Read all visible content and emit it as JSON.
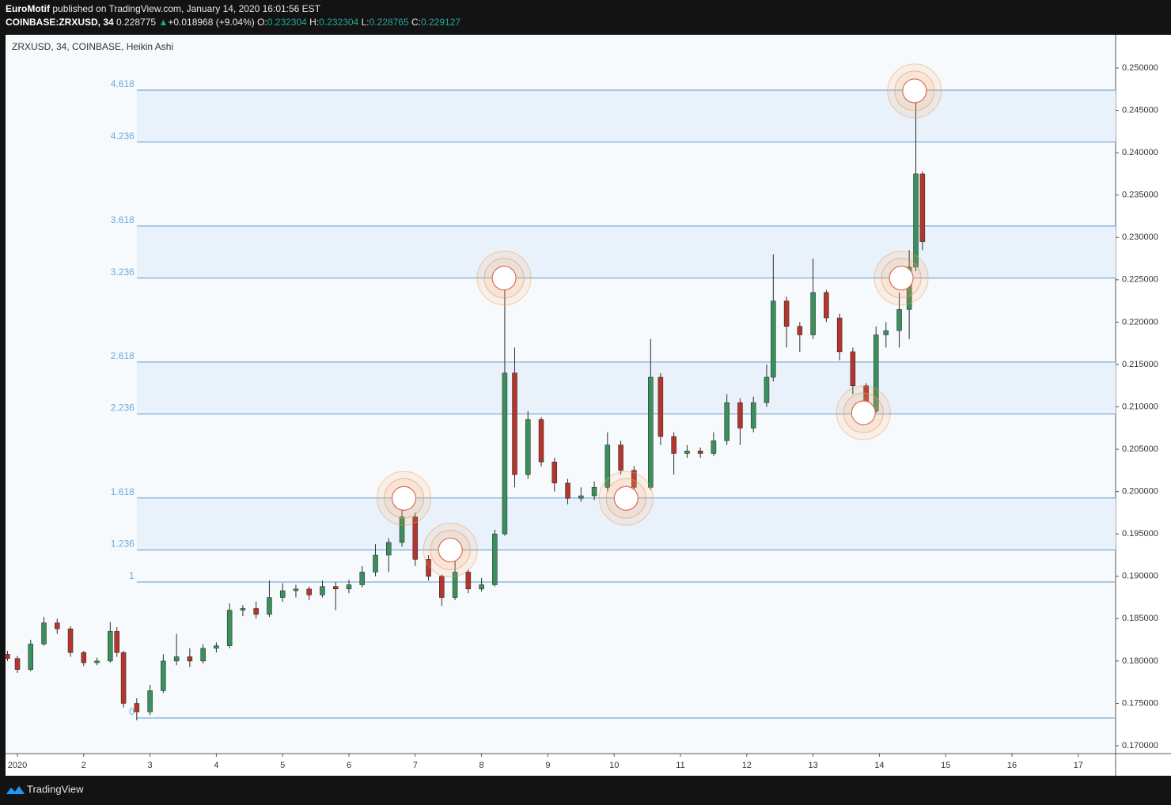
{
  "header": {
    "author": "EuroMotif",
    "published": "published on TradingView.com, January 14, 2020 16:01:56 EST",
    "symbol": "COINBASE:ZRXUSD, 34",
    "last": "0.228775",
    "arrow": "▲",
    "change": "+0.018968 (+9.04%)",
    "o_label": "O:",
    "o": "0.232304",
    "h_label": "H:",
    "h": "0.232304",
    "l_label": "L:",
    "l": "0.228765",
    "c_label": "C:",
    "c": "0.229127"
  },
  "footer": {
    "brand": "TradingView"
  },
  "chart_data": {
    "type": "candlestick",
    "title": "ZRXUSD, 34, COINBASE, Heikin Ashi",
    "up_color": "#3a8f5c",
    "down_color": "#b3352c",
    "wick_color": "#2b2b2b",
    "x": [
      0.85,
      1.0,
      1.2,
      1.4,
      1.6,
      1.8,
      2.0,
      2.2,
      2.4,
      2.5,
      2.6,
      2.8,
      3.0,
      3.2,
      3.4,
      3.6,
      3.8,
      4.0,
      4.2,
      4.4,
      4.6,
      4.8,
      5.0,
      5.2,
      5.4,
      5.6,
      5.8,
      6.0,
      6.2,
      6.4,
      6.6,
      6.8,
      7.0,
      7.2,
      7.4,
      7.6,
      7.8,
      8.0,
      8.2,
      8.35,
      8.5,
      8.7,
      8.9,
      9.1,
      9.3,
      9.5,
      9.7,
      9.9,
      10.1,
      10.3,
      10.55,
      10.7,
      10.9,
      11.1,
      11.3,
      11.5,
      11.7,
      11.9,
      12.1,
      12.3,
      12.4,
      12.6,
      12.8,
      13.0,
      13.2,
      13.4,
      13.6,
      13.8,
      13.95,
      14.1,
      14.3,
      14.45,
      14.55,
      14.65
    ],
    "open": [
      0.1808,
      0.1803,
      0.179,
      0.182,
      0.1845,
      0.1838,
      0.181,
      0.1798,
      0.18,
      0.1835,
      0.181,
      0.175,
      0.174,
      0.1765,
      0.18,
      0.1805,
      0.18,
      0.1815,
      0.1818,
      0.186,
      0.1862,
      0.1855,
      0.1875,
      0.1883,
      0.1885,
      0.1878,
      0.1888,
      0.1885,
      0.189,
      0.1905,
      0.1925,
      0.194,
      0.197,
      0.192,
      0.19,
      0.1875,
      0.1905,
      0.1885,
      0.189,
      0.195,
      0.214,
      0.202,
      0.2085,
      0.2035,
      0.201,
      0.1992,
      0.1995,
      0.2005,
      0.2055,
      0.2025,
      0.2005,
      0.2135,
      0.2065,
      0.2045,
      0.2048,
      0.2045,
      0.206,
      0.2105,
      0.2075,
      0.2105,
      0.2135,
      0.2225,
      0.2195,
      0.2185,
      0.2235,
      0.2205,
      0.2165,
      0.2125,
      0.2095,
      0.2185,
      0.219,
      0.2215,
      0.2265,
      0.2375
    ],
    "high": [
      0.1812,
      0.1806,
      0.1825,
      0.1852,
      0.185,
      0.1841,
      0.1812,
      0.1804,
      0.1846,
      0.184,
      0.1812,
      0.1756,
      0.1772,
      0.1808,
      0.1832,
      0.1815,
      0.182,
      0.1822,
      0.1868,
      0.1866,
      0.187,
      0.1895,
      0.1892,
      0.189,
      0.1888,
      0.1895,
      0.1893,
      0.1896,
      0.1912,
      0.1938,
      0.1945,
      0.1985,
      0.1975,
      0.1925,
      0.1902,
      0.1935,
      0.1908,
      0.1898,
      0.1955,
      0.2255,
      0.217,
      0.2095,
      0.2088,
      0.204,
      0.2015,
      0.2005,
      0.2012,
      0.207,
      0.206,
      0.203,
      0.218,
      0.214,
      0.207,
      0.2055,
      0.2052,
      0.207,
      0.2115,
      0.211,
      0.2112,
      0.215,
      0.228,
      0.223,
      0.22,
      0.2275,
      0.2238,
      0.221,
      0.217,
      0.2128,
      0.2195,
      0.22,
      0.2235,
      0.2285,
      0.247,
      0.2378
    ],
    "low": [
      0.18,
      0.1786,
      0.1788,
      0.1818,
      0.1832,
      0.1805,
      0.1794,
      0.1795,
      0.1798,
      0.1805,
      0.1745,
      0.173,
      0.1736,
      0.1762,
      0.1795,
      0.1793,
      0.1797,
      0.181,
      0.1815,
      0.1853,
      0.185,
      0.1852,
      0.187,
      0.1875,
      0.1872,
      0.1875,
      0.186,
      0.188,
      0.1887,
      0.19,
      0.1905,
      0.1935,
      0.1912,
      0.1895,
      0.1865,
      0.1872,
      0.188,
      0.1882,
      0.1888,
      0.1948,
      0.2005,
      0.2015,
      0.203,
      0.2,
      0.1985,
      0.1988,
      0.199,
      0.2,
      0.202,
      0.1995,
      0.2002,
      0.2055,
      0.202,
      0.204,
      0.204,
      0.2042,
      0.2055,
      0.2055,
      0.207,
      0.21,
      0.213,
      0.217,
      0.2165,
      0.218,
      0.22,
      0.2155,
      0.2115,
      0.209,
      0.2093,
      0.217,
      0.217,
      0.218,
      0.226,
      0.2285
    ],
    "close": [
      0.1803,
      0.179,
      0.182,
      0.1845,
      0.1838,
      0.181,
      0.1798,
      0.18,
      0.1835,
      0.181,
      0.175,
      0.174,
      0.1765,
      0.18,
      0.1805,
      0.18,
      0.1815,
      0.1818,
      0.186,
      0.1862,
      0.1855,
      0.1875,
      0.1883,
      0.1885,
      0.1878,
      0.1888,
      0.1885,
      0.189,
      0.1905,
      0.1925,
      0.194,
      0.197,
      0.192,
      0.19,
      0.1875,
      0.1905,
      0.1885,
      0.189,
      0.195,
      0.214,
      0.202,
      0.2085,
      0.2035,
      0.201,
      0.1992,
      0.1995,
      0.2005,
      0.2055,
      0.2025,
      0.2005,
      0.2135,
      0.2065,
      0.2045,
      0.2048,
      0.2045,
      0.206,
      0.2105,
      0.2075,
      0.2105,
      0.2135,
      0.2225,
      0.2195,
      0.2185,
      0.2235,
      0.2205,
      0.2165,
      0.2125,
      0.2095,
      0.2185,
      0.219,
      0.2215,
      0.2265,
      0.2375,
      0.2295
    ],
    "xlim": [
      0.821,
      17.563
    ],
    "xticks": [
      {
        "value": 1,
        "label": "2020"
      },
      2,
      3,
      4,
      5,
      6,
      7,
      8,
      9,
      10,
      11,
      12,
      13,
      14,
      15,
      16,
      17
    ],
    "ylim": [
      0.16907,
      0.25392
    ],
    "yticks": [
      {
        "value": 0.17,
        "label": "0.170000"
      },
      {
        "value": 0.175,
        "label": "0.175000"
      },
      {
        "value": 0.18,
        "label": "0.180000"
      },
      {
        "value": 0.185,
        "label": "0.185000"
      },
      {
        "value": 0.19,
        "label": "0.190000"
      },
      {
        "value": 0.195,
        "label": "0.195000"
      },
      {
        "value": 0.2,
        "label": "0.200000"
      },
      {
        "value": 0.205,
        "label": "0.205000"
      },
      {
        "value": 0.21,
        "label": "0.210000"
      },
      {
        "value": 0.215,
        "label": "0.215000"
      },
      {
        "value": 0.22,
        "label": "0.220000"
      },
      {
        "value": 0.225,
        "label": "0.225000"
      },
      {
        "value": 0.23,
        "label": "0.230000"
      },
      {
        "value": 0.235,
        "label": "0.235000"
      },
      {
        "value": 0.24,
        "label": "0.240000"
      },
      {
        "value": 0.245,
        "label": "0.245000"
      },
      {
        "value": 0.25,
        "label": "0.250000"
      }
    ],
    "fib": {
      "start_x": 2.8,
      "range": [
        0.17327,
        0.18932
      ],
      "color": "#5b9bd0",
      "shade": "#e9f1fb",
      "levels": [
        0,
        1,
        1.236,
        1.618,
        2.236,
        2.618,
        3.236,
        3.618,
        4.236,
        4.618
      ]
    },
    "markers": [
      {
        "x": 6.83,
        "y": 0.1992
      },
      {
        "x": 7.53,
        "y": 0.1931
      },
      {
        "x": 8.34,
        "y": 0.2252
      },
      {
        "x": 10.18,
        "y": 0.1992
      },
      {
        "x": 13.76,
        "y": 0.2093
      },
      {
        "x": 14.33,
        "y": 0.2252
      },
      {
        "x": 14.53,
        "y": 0.2473
      }
    ]
  }
}
